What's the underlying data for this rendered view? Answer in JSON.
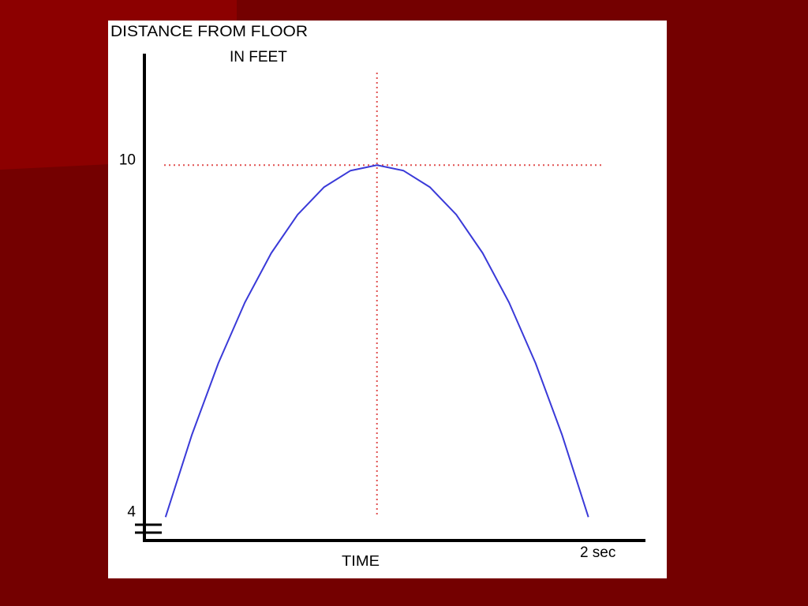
{
  "chart_data": {
    "type": "line",
    "title": "DISTANCE FROM FLOOR",
    "y_unit_label": "IN FEET",
    "x_label": "TIME",
    "x": [
      0,
      0.125,
      0.25,
      0.375,
      0.5,
      0.625,
      0.75,
      0.875,
      1,
      1.125,
      1.25,
      1.375,
      1.5,
      1.625,
      1.75,
      1.875,
      2
    ],
    "series": [
      {
        "color": "#3a3ad8",
        "values": [
          4,
          5.40625,
          6.625,
          7.65625,
          8.5,
          9.15625,
          9.625,
          9.90625,
          10,
          9.90625,
          9.625,
          9.15625,
          8.5,
          7.65625,
          6.625,
          5.40625,
          4
        ]
      }
    ],
    "xlim": [
      -0.1,
      2.27
    ],
    "ylim": [
      3.6,
      11.9
    ],
    "xticks": [
      {
        "value": 2,
        "label": "2 sec"
      }
    ],
    "yticks": [
      4,
      10
    ],
    "guide_x": 1,
    "guide_color": "#e05050",
    "grid": true
  }
}
